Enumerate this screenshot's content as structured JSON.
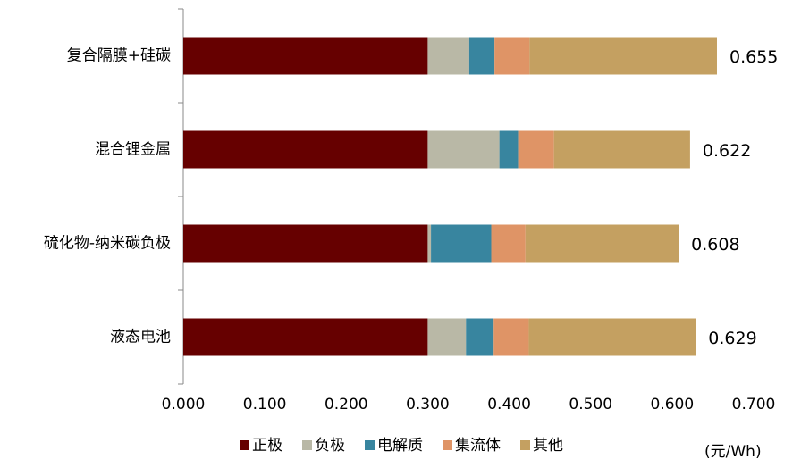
{
  "chart_data": {
    "type": "stacked-barh",
    "categories": [
      "复合隔膜+硅碳",
      "混合锂金属",
      "硫化物-纳米碳负极",
      "液态电池"
    ],
    "series": [
      {
        "name": "正极",
        "color": "#660000",
        "values": [
          0.3,
          0.3,
          0.3,
          0.3
        ]
      },
      {
        "name": "负极",
        "color": "#b9b8a6",
        "values": [
          0.051,
          0.088,
          0.004,
          0.047
        ]
      },
      {
        "name": "电解质",
        "color": "#38859f",
        "values": [
          0.031,
          0.023,
          0.074,
          0.034
        ]
      },
      {
        "name": "集流体",
        "color": "#df9466",
        "values": [
          0.043,
          0.044,
          0.042,
          0.043
        ]
      },
      {
        "name": "其他",
        "color": "#c4a061",
        "values": [
          0.23,
          0.167,
          0.188,
          0.205
        ]
      }
    ],
    "totals": [
      0.655,
      0.622,
      0.608,
      0.629
    ],
    "xlim": [
      0,
      0.7
    ],
    "xticks": [
      {
        "value": 0,
        "label": "0.000"
      },
      {
        "value": 0.1,
        "label": "0.100"
      },
      {
        "value": 0.2,
        "label": "0.200"
      },
      {
        "value": 0.3,
        "label": "0.300"
      },
      {
        "value": 0.4,
        "label": "0.400"
      },
      {
        "value": 0.5,
        "label": "0.500"
      },
      {
        "value": 0.6,
        "label": "0.600"
      },
      {
        "value": 0.7,
        "label": "0.700"
      }
    ],
    "unit": "(元/Wh)",
    "legend": "bottom"
  }
}
